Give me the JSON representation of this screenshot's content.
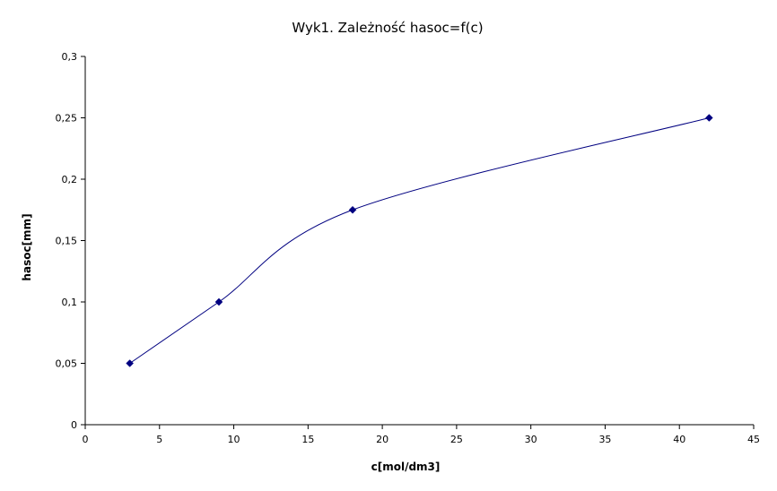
{
  "chart_data": {
    "type": "scatter",
    "title": "Wyk1. Zależność hasoc=f(c)",
    "xlabel": "c[mol/dm3]",
    "ylabel": "hasoc[mm]",
    "xlim": [
      0,
      45
    ],
    "ylim": [
      0,
      0.3
    ],
    "x_ticks": [
      "0",
      "5",
      "10",
      "15",
      "20",
      "25",
      "30",
      "35",
      "40",
      "45"
    ],
    "y_ticks": [
      "0",
      "0,05",
      "0,1",
      "0,15",
      "0,2",
      "0,25",
      "0,3"
    ],
    "grid": false,
    "legend": "none",
    "line": "smooth",
    "series": [
      {
        "color": "#000080",
        "marker": "diamond",
        "x": [
          3,
          9,
          18,
          42
        ],
        "y": [
          0.05,
          0.1,
          0.175,
          0.25
        ]
      }
    ]
  }
}
